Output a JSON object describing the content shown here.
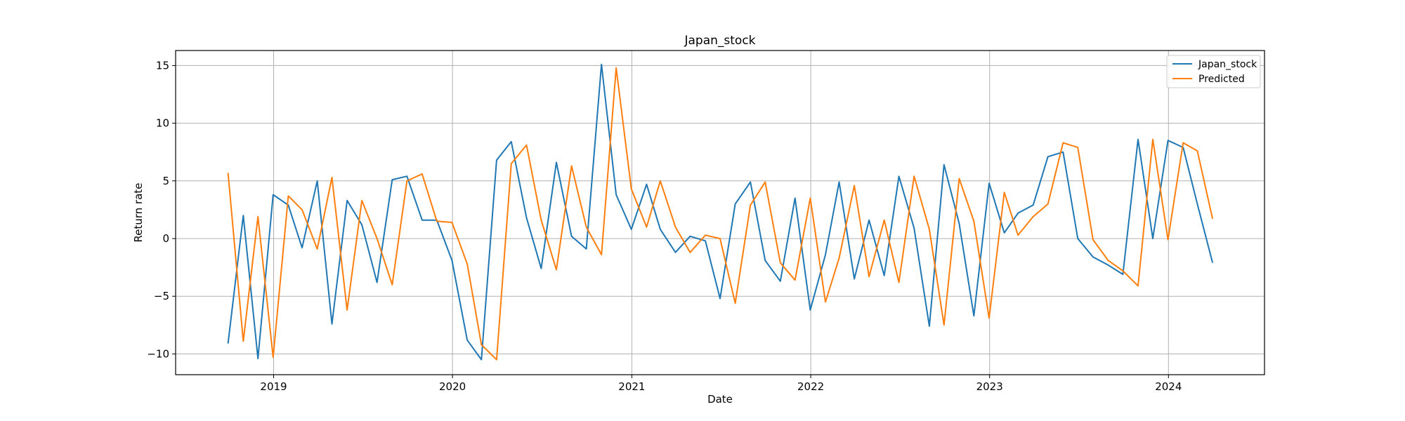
{
  "chart_data": {
    "type": "line",
    "title": "Japan_stock",
    "xlabel": "Date",
    "ylabel": "Return rate",
    "grid": true,
    "legend_position": "top-right",
    "xlim": [
      "2018-06-15",
      "2024-07-15"
    ],
    "ylim": [
      -11.8,
      16.3
    ],
    "x_ticks": [
      {
        "date": "2019-01-01",
        "label": "2019"
      },
      {
        "date": "2020-01-01",
        "label": "2020"
      },
      {
        "date": "2021-01-01",
        "label": "2021"
      },
      {
        "date": "2022-01-01",
        "label": "2022"
      },
      {
        "date": "2023-01-01",
        "label": "2023"
      },
      {
        "date": "2024-01-01",
        "label": "2024"
      }
    ],
    "y_ticks": [
      {
        "value": -10,
        "label": "−10"
      },
      {
        "value": -5,
        "label": "−5"
      },
      {
        "value": 0,
        "label": "0"
      },
      {
        "value": 5,
        "label": "5"
      },
      {
        "value": 10,
        "label": "10"
      },
      {
        "value": 15,
        "label": "15"
      }
    ],
    "x": [
      "2018-09-30",
      "2018-10-31",
      "2018-11-30",
      "2018-12-31",
      "2019-01-31",
      "2019-02-28",
      "2019-03-31",
      "2019-04-30",
      "2019-05-31",
      "2019-06-30",
      "2019-07-31",
      "2019-08-31",
      "2019-09-30",
      "2019-10-31",
      "2019-11-30",
      "2019-12-31",
      "2020-01-31",
      "2020-02-29",
      "2020-03-31",
      "2020-04-30",
      "2020-05-31",
      "2020-06-30",
      "2020-07-31",
      "2020-08-31",
      "2020-09-30",
      "2020-10-31",
      "2020-11-30",
      "2020-12-31",
      "2021-01-31",
      "2021-02-28",
      "2021-03-31",
      "2021-04-30",
      "2021-05-31",
      "2021-06-30",
      "2021-07-31",
      "2021-08-31",
      "2021-09-30",
      "2021-10-31",
      "2021-11-30",
      "2021-12-31",
      "2022-01-31",
      "2022-02-28",
      "2022-03-31",
      "2022-04-30",
      "2022-05-31",
      "2022-06-30",
      "2022-07-31",
      "2022-08-31",
      "2022-09-30",
      "2022-10-31",
      "2022-11-30",
      "2022-12-31",
      "2023-01-31",
      "2023-02-28",
      "2023-03-31",
      "2023-04-30",
      "2023-05-31",
      "2023-06-30",
      "2023-07-31",
      "2023-08-31",
      "2023-09-30",
      "2023-10-31",
      "2023-11-30",
      "2023-12-31",
      "2024-01-31",
      "2024-02-29",
      "2024-03-31"
    ],
    "series": [
      {
        "name": "Japan_stock",
        "color": "#1f77b4",
        "values": [
          -9.1,
          2.0,
          -10.4,
          3.8,
          2.9,
          -0.8,
          5.0,
          -7.4,
          3.3,
          1.2,
          -3.8,
          5.1,
          5.4,
          1.6,
          1.6,
          -1.9,
          -8.8,
          -10.5,
          6.8,
          8.4,
          1.8,
          -2.6,
          6.6,
          0.2,
          -0.9,
          15.1,
          3.8,
          0.8,
          4.7,
          0.8,
          -1.2,
          0.2,
          -0.2,
          -5.2,
          3.0,
          4.9,
          -1.9,
          -3.7,
          3.5,
          -6.2,
          -1.4,
          4.9,
          -3.5,
          1.6,
          -3.2,
          5.4,
          0.9,
          -7.6,
          6.4,
          1.3,
          -6.7,
          4.8,
          0.5,
          2.2,
          2.9,
          7.1,
          7.5,
          0.0,
          -1.6,
          -2.3,
          -3.1,
          8.6,
          0.0,
          8.5,
          7.9,
          3.0,
          -2.1
        ]
      },
      {
        "name": "Predicted",
        "color": "#ff7f0e",
        "values": [
          5.7,
          -8.9,
          1.9,
          -10.3,
          3.7,
          2.5,
          -0.9,
          5.3,
          -6.2,
          3.3,
          0.0,
          -4.0,
          5.0,
          5.6,
          1.5,
          1.4,
          -2.2,
          -9.2,
          -10.5,
          6.5,
          8.1,
          1.6,
          -2.7,
          6.3,
          1.0,
          -1.4,
          14.8,
          4.3,
          1.0,
          5.0,
          1.0,
          -1.2,
          0.3,
          0.0,
          -5.6,
          2.9,
          4.9,
          -2.1,
          -3.6,
          3.5,
          -5.5,
          -1.7,
          4.6,
          -3.3,
          1.6,
          -3.8,
          5.4,
          0.8,
          -7.5,
          5.2,
          1.5,
          -6.9,
          4.0,
          0.3,
          1.9,
          3.0,
          8.3,
          7.9,
          -0.1,
          -1.9,
          -2.8,
          -4.1,
          8.6,
          -0.1,
          8.3,
          7.6,
          1.7
        ]
      }
    ]
  }
}
